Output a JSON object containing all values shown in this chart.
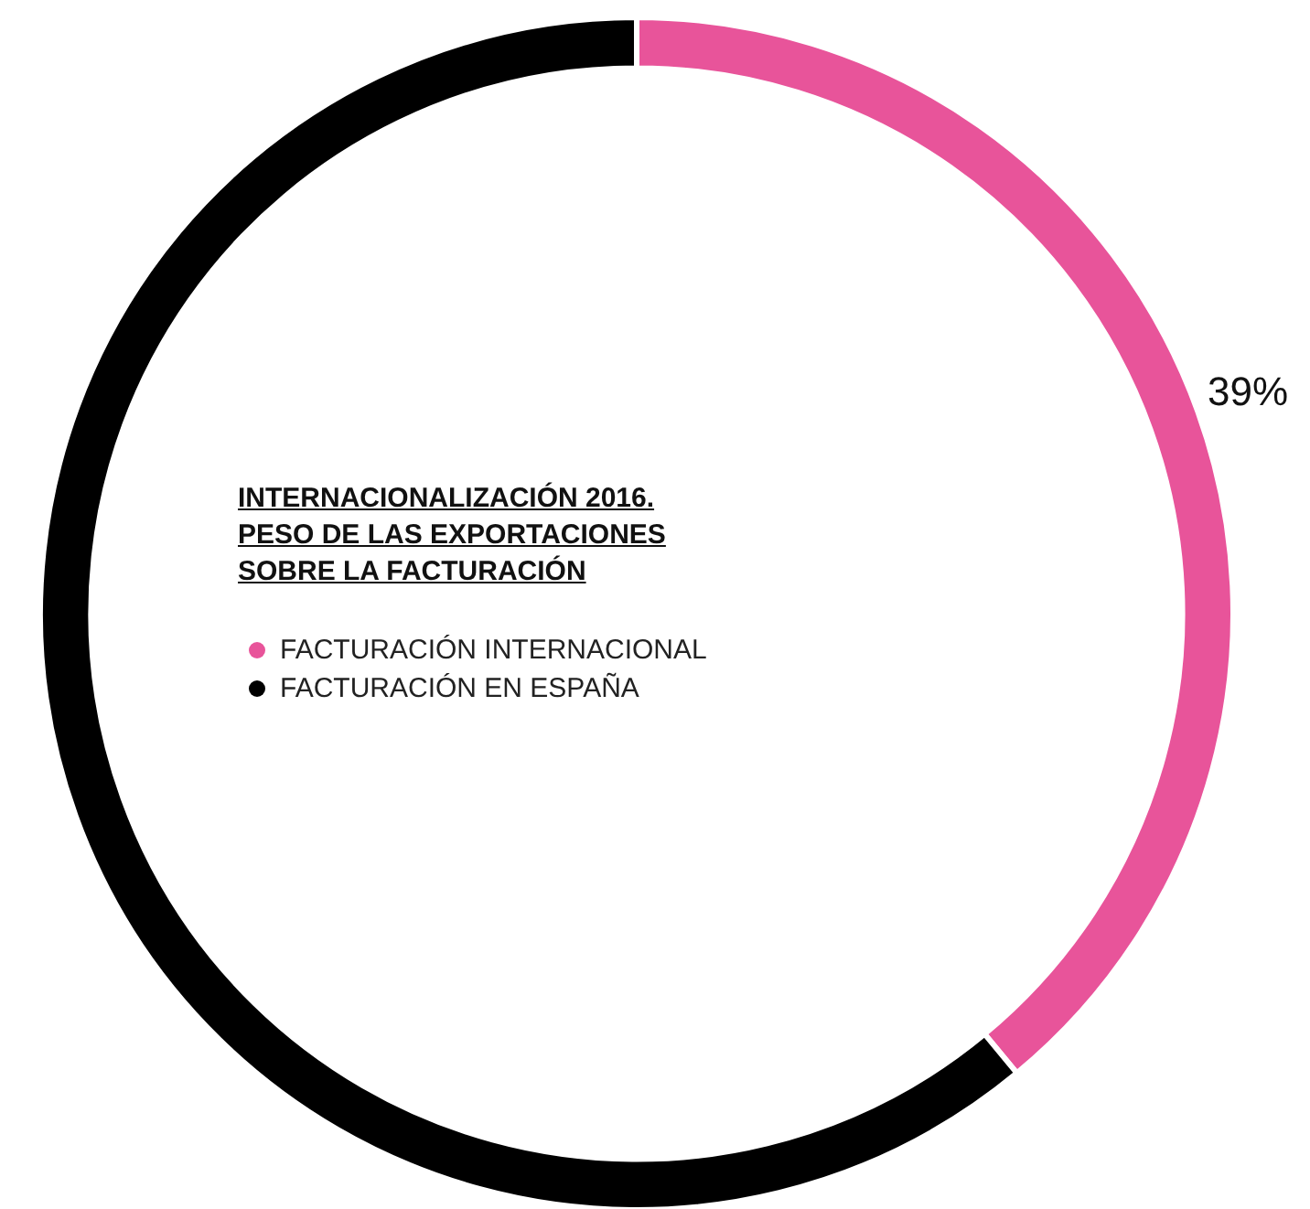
{
  "chart_data": {
    "type": "donut",
    "title": "INTERNACIONALIZACIÓN 2016.\nPESO DE LAS EXPORTACIONES\nSOBRE LA FACTURACIÓN",
    "categories": [
      "FACTURACIÓN INTERNACIONAL",
      "FACTURACIÓN EN ESPAÑA"
    ],
    "values": [
      39,
      61
    ],
    "colors": [
      "#e8549a",
      "#000000"
    ],
    "value_labels": [
      "39%",
      null
    ],
    "legend": "center"
  }
}
